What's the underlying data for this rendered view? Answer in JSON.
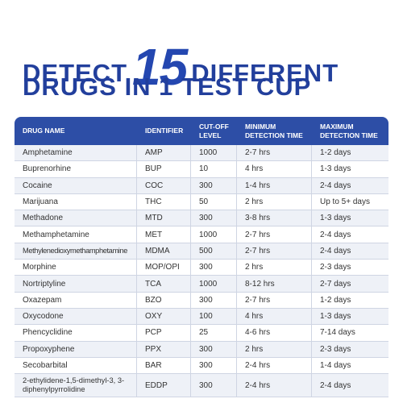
{
  "title": {
    "prefix": "DETECT",
    "number": "15",
    "suffix": "DIFFERENT",
    "line2": "DRUGS IN 1 TEST CUP"
  },
  "table": {
    "headers": [
      "DRUG NAME",
      "IDENTIFIER",
      "CUT-OFF LEVEL",
      "MINIMUM DETECTION TIME",
      "MAXIMUM DETECTION TIME"
    ],
    "rows": [
      [
        "Amphetamine",
        "AMP",
        "1000",
        "2-7 hrs",
        "1-2 days"
      ],
      [
        "Buprenorhine",
        "BUP",
        "10",
        "4 hrs",
        "1-3 days"
      ],
      [
        "Cocaine",
        "COC",
        "300",
        "1-4 hrs",
        "2-4 days"
      ],
      [
        "Marijuana",
        "THC",
        "50",
        "2 hrs",
        "Up to 5+ days"
      ],
      [
        "Methadone",
        "MTD",
        "300",
        "3-8 hrs",
        "1-3 days"
      ],
      [
        "Methamphetamine",
        "MET",
        "1000",
        "2-7 hrs",
        "2-4 days"
      ],
      [
        "Methylenedioxymethamphetamine",
        "MDMA",
        "500",
        "2-7 hrs",
        "2-4 days"
      ],
      [
        "Morphine",
        "MOP/OPI",
        "300",
        "2 hrs",
        "2-3 days"
      ],
      [
        "Nortriptyline",
        "TCA",
        "1000",
        "8-12 hrs",
        "2-7 days"
      ],
      [
        "Oxazepam",
        "BZO",
        "300",
        "2-7 hrs",
        "1-2 days"
      ],
      [
        "Oxycodone",
        "OXY",
        "100",
        "4 hrs",
        "1-3 days"
      ],
      [
        "Phencyclidine",
        "PCP",
        "25",
        "4-6 hrs",
        "7-14 days"
      ],
      [
        "Propoxyphene",
        "PPX",
        "300",
        "2 hrs",
        "2-3 days"
      ],
      [
        "Secobarbital",
        "BAR",
        "300",
        "2-4 hrs",
        "1-4 days"
      ],
      [
        "2-ethylidene-1,5-dimethyl-3, 3-diphenylpyrrolidine",
        "EDDP",
        "300",
        "2-4 hrs",
        "2-4 days"
      ]
    ]
  }
}
